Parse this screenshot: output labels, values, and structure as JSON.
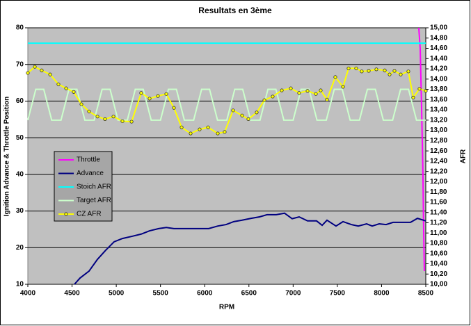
{
  "chart_data": {
    "type": "line",
    "title": "Resultats en 3ème",
    "xlabel": "RPM",
    "ylabel": "Ignition Advance & Throttle Position",
    "y2label": "AFR",
    "xlim": [
      4000,
      8500
    ],
    "xticks": [
      4000,
      4500,
      5000,
      5500,
      6000,
      6500,
      7000,
      7500,
      8000,
      8500
    ],
    "ylim": [
      10,
      80
    ],
    "yticks": [
      10,
      20,
      30,
      40,
      50,
      60,
      70,
      80
    ],
    "y2lim": [
      10,
      15
    ],
    "y2ticks": [
      {
        "value": 10,
        "label": "10,00"
      },
      {
        "value": 10.2,
        "label": "10,20"
      },
      {
        "value": 10.4,
        "label": "10,40"
      },
      {
        "value": 10.6,
        "label": "10,60"
      },
      {
        "value": 10.8,
        "label": "10,80"
      },
      {
        "value": 11,
        "label": "11,00"
      },
      {
        "value": 11.2,
        "label": "11,20"
      },
      {
        "value": 11.4,
        "label": "11,40"
      },
      {
        "value": 11.6,
        "label": "11,60"
      },
      {
        "value": 11.8,
        "label": "11,80"
      },
      {
        "value": 12,
        "label": "12,00"
      },
      {
        "value": 12.2,
        "label": "12,20"
      },
      {
        "value": 12.4,
        "label": "12,40"
      },
      {
        "value": 12.6,
        "label": "12,60"
      },
      {
        "value": 12.8,
        "label": "12,80"
      },
      {
        "value": 13,
        "label": "13,00"
      },
      {
        "value": 13.2,
        "label": "13,20"
      },
      {
        "value": 13.4,
        "label": "13,40"
      },
      {
        "value": 13.6,
        "label": "13,60"
      },
      {
        "value": 13.8,
        "label": "13,80"
      },
      {
        "value": 14,
        "label": "14,00"
      },
      {
        "value": 14.2,
        "label": "14,20"
      },
      {
        "value": 14.4,
        "label": "14,40"
      },
      {
        "value": 14.6,
        "label": "14,60"
      },
      {
        "value": 14.8,
        "label": "14,80"
      },
      {
        "value": 15,
        "label": "15,00"
      }
    ],
    "grid": true,
    "legend": "left",
    "series": [
      {
        "name": "Throttle",
        "color": "#ff00ff",
        "x": [
          8421,
          8437,
          8452,
          8468,
          8476,
          8484
        ],
        "values": [
          80,
          74.3,
          59,
          40,
          25,
          13.6
        ]
      },
      {
        "name": "Advance",
        "color": "#000080",
        "x": [
          4527,
          4590,
          4692,
          4787,
          4881,
          4976,
          5070,
          5180,
          5282,
          5377,
          5479,
          5566,
          5652,
          5849,
          6045,
          6148,
          6242,
          6329,
          6423,
          6525,
          6620,
          6706,
          6809,
          6903,
          6989,
          7068,
          7163,
          7265,
          7328,
          7383,
          7485,
          7564,
          7658,
          7737,
          7831,
          7894,
          7973,
          8051,
          8130,
          8248,
          8327,
          8406,
          8500
        ],
        "values": [
          10,
          11.7,
          13.6,
          16.8,
          19.3,
          21.6,
          22.5,
          23.1,
          23.7,
          24.6,
          25.2,
          25.5,
          25.2,
          25.2,
          25.2,
          25.9,
          26.3,
          27.1,
          27.5,
          28,
          28.4,
          29,
          29,
          29.4,
          27.9,
          28.4,
          27.3,
          27.3,
          26.1,
          27.5,
          25.9,
          27.1,
          26.3,
          25.9,
          26.5,
          25.9,
          26.5,
          26.3,
          26.9,
          26.9,
          26.9,
          28,
          27.3
        ]
      },
      {
        "name": "Stoich AFR",
        "color": "#00ffff",
        "axis": "y2",
        "x": [
          4000,
          8500
        ],
        "values": [
          14.7,
          14.7
        ]
      },
      {
        "name": "Target AFR",
        "color": "#ccffcc",
        "axis": "y2",
        "x": [
          4000,
          4090,
          4180,
          4270,
          4375,
          4465,
          4555,
          4645,
          4750,
          4840,
          4930,
          5020,
          5125,
          5215,
          5305,
          5395,
          5500,
          5590,
          5680,
          5770,
          5875,
          5965,
          6055,
          6145,
          6250,
          6340,
          6430,
          6520,
          6625,
          6715,
          6805,
          6895,
          7000,
          7090,
          7180,
          7270,
          7375,
          7465,
          7555,
          7645,
          7750,
          7840,
          7930,
          8020,
          8125,
          8215,
          8305,
          8395,
          8500
        ],
        "values": [
          13.2,
          13.8,
          13.8,
          13.2,
          13.2,
          13.8,
          13.8,
          13.2,
          13.2,
          13.8,
          13.8,
          13.2,
          13.2,
          13.8,
          13.8,
          13.2,
          13.2,
          13.8,
          13.8,
          13.2,
          13.2,
          13.8,
          13.8,
          13.2,
          13.2,
          13.8,
          13.8,
          13.2,
          13.2,
          13.8,
          13.8,
          13.2,
          13.2,
          13.8,
          13.8,
          13.2,
          13.2,
          13.8,
          13.8,
          13.2,
          13.2,
          13.8,
          13.8,
          13.2,
          13.2,
          13.8,
          13.8,
          13.2,
          13.2
        ]
      },
      {
        "name": "CZ AFR",
        "color": "#ffff00",
        "axis": "y2",
        "marker": true,
        "x": [
          4000,
          4079,
          4157,
          4252,
          4346,
          4433,
          4519,
          4606,
          4692,
          4787,
          4873,
          4968,
          5070,
          5173,
          5282,
          5377,
          5471,
          5566,
          5652,
          5739,
          5841,
          5943,
          6038,
          6148,
          6226,
          6321,
          6423,
          6494,
          6588,
          6675,
          6769,
          6872,
          6974,
          7068,
          7163,
          7257,
          7312,
          7383,
          7477,
          7564,
          7627,
          7713,
          7776,
          7855,
          7941,
          8036,
          8091,
          8146,
          8217,
          8303,
          8358,
          8429,
          8500
        ],
        "values": [
          14.12,
          14.24,
          14.17,
          14.09,
          13.9,
          13.82,
          13.75,
          13.51,
          13.37,
          13.27,
          13.22,
          13.27,
          13.18,
          13.17,
          13.73,
          13.62,
          13.67,
          13.71,
          13.44,
          13.06,
          12.94,
          13.02,
          13.06,
          12.94,
          12.97,
          13.39,
          13.29,
          13.22,
          13.35,
          13.59,
          13.66,
          13.78,
          13.82,
          13.73,
          13.77,
          13.71,
          13.78,
          13.6,
          14.04,
          13.85,
          14.21,
          14.21,
          14.15,
          14.16,
          14.19,
          14.17,
          14.09,
          14.16,
          14.09,
          14.15,
          13.64,
          13.81,
          13.77
        ]
      }
    ]
  }
}
